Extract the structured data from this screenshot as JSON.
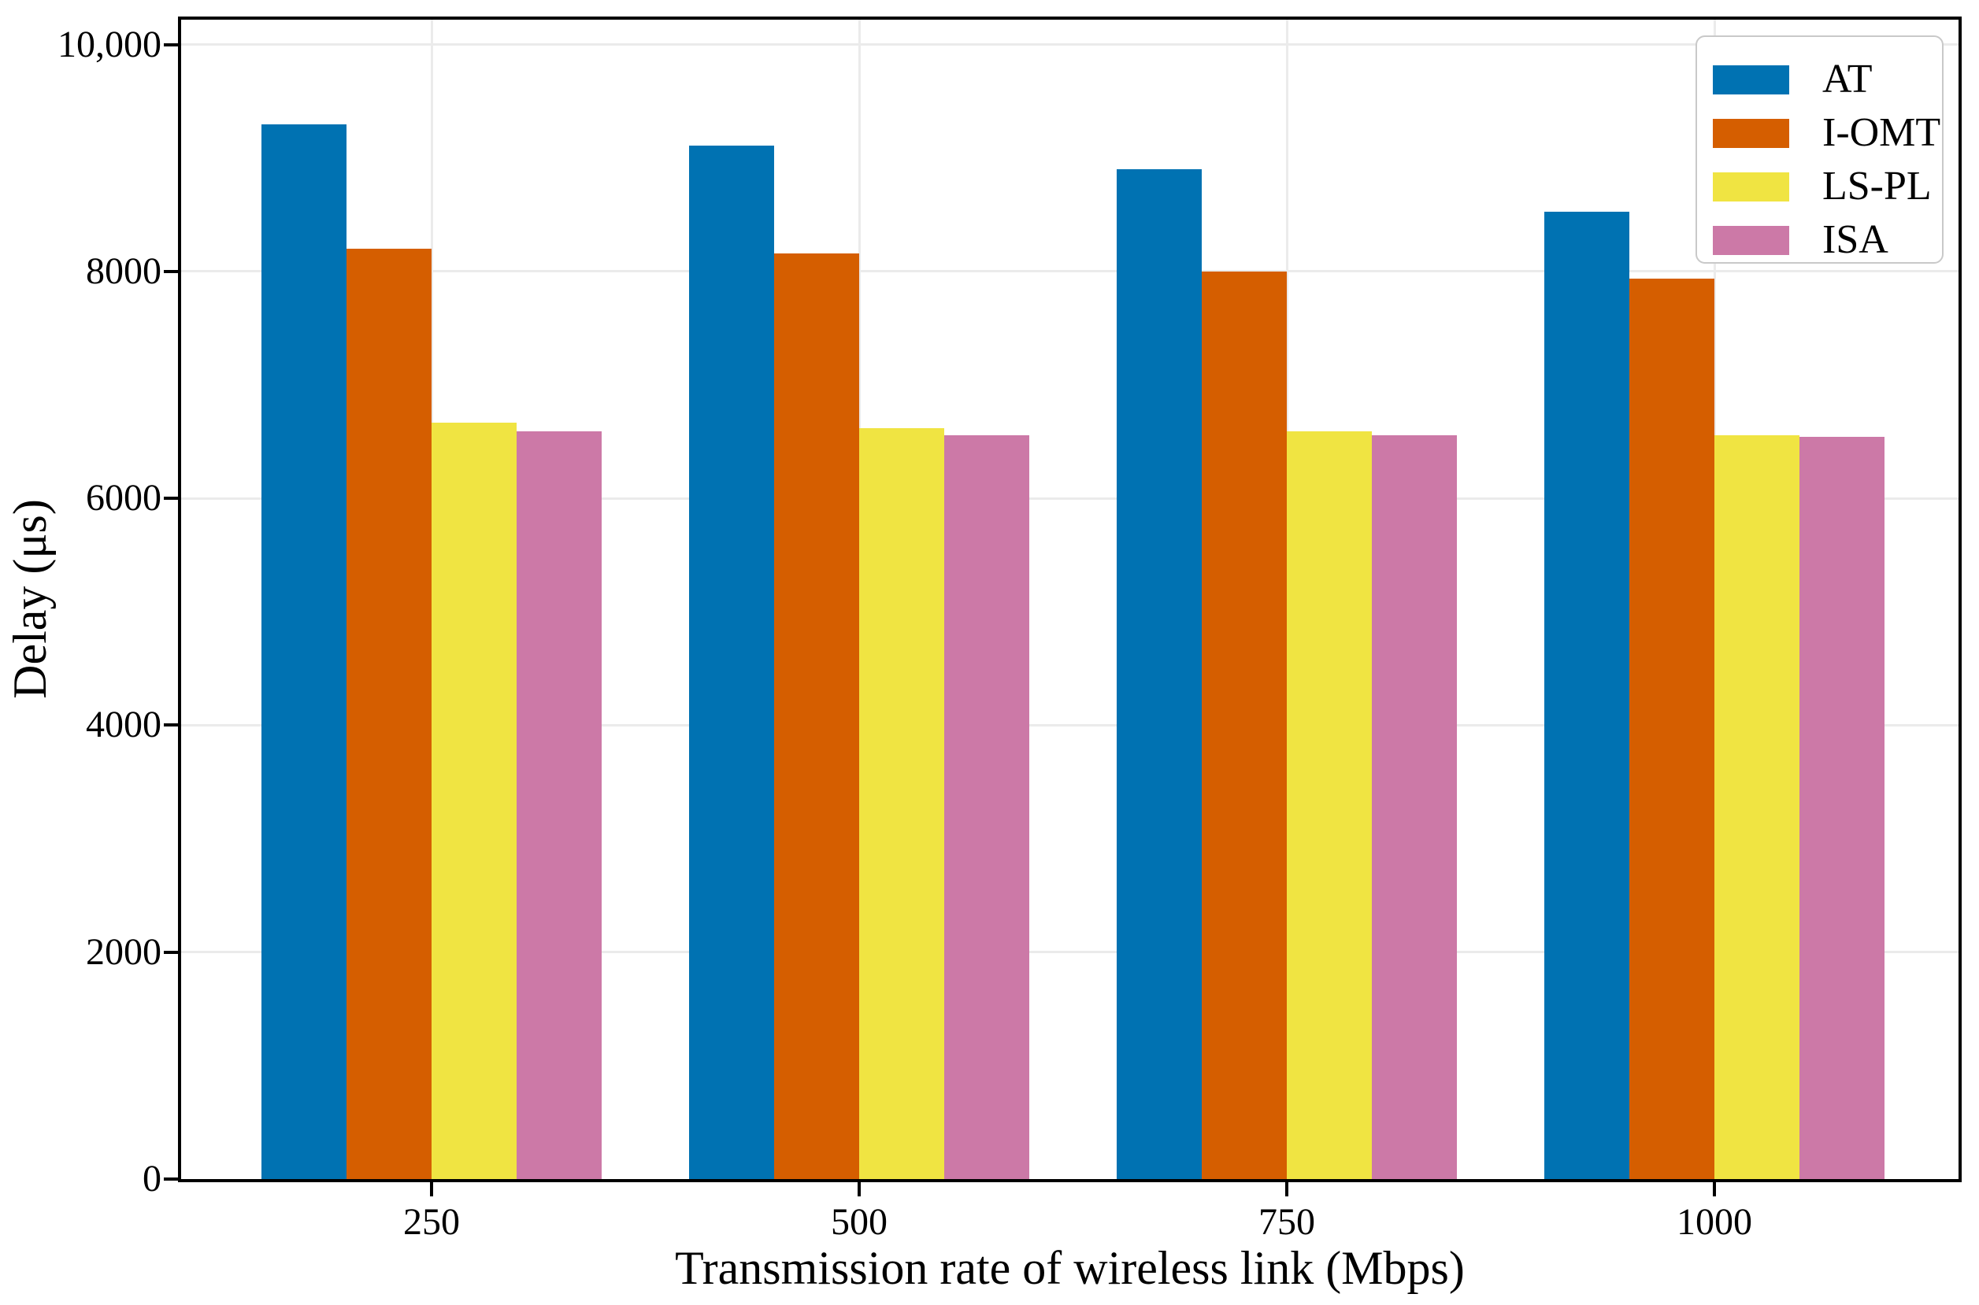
{
  "figure": {
    "background": "#ffffff",
    "axis_color": "#000000",
    "gridline_color": "#ebebeb"
  },
  "chart_data": {
    "type": "bar",
    "title": "",
    "categories": [
      "250",
      "500",
      "750",
      "1000"
    ],
    "series": [
      {
        "name": "AT",
        "color": "#0072B2",
        "values": [
          9300,
          9110,
          8900,
          8530
        ]
      },
      {
        "name": "I-OMT",
        "color": "#D55E00",
        "values": [
          8200,
          8160,
          8000,
          7940
        ]
      },
      {
        "name": "LS-PL",
        "color": "#F0E442",
        "values": [
          6670,
          6620,
          6590,
          6560
        ]
      },
      {
        "name": "ISA",
        "color": "#CC79A7",
        "values": [
          6590,
          6560,
          6560,
          6545
        ]
      }
    ],
    "xlabel": "Transmission rate of wireless link (Mbps)",
    "ylabel": "Delay (μs)",
    "ylim": [
      0,
      10220
    ],
    "yticks": [
      {
        "value": 0,
        "label": "0"
      },
      {
        "value": 2000,
        "label": "2000"
      },
      {
        "value": 4000,
        "label": "4000"
      },
      {
        "value": 6000,
        "label": "6000"
      },
      {
        "value": 8000,
        "label": "8000"
      },
      {
        "value": 10000,
        "label": "10,000"
      }
    ],
    "grid": true,
    "legend_position": "upper right"
  }
}
